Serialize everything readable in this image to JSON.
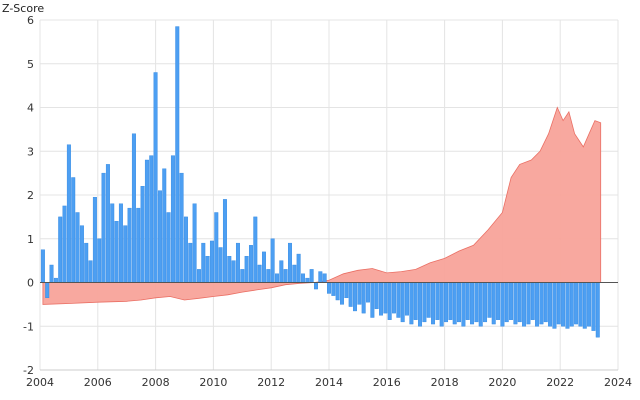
{
  "chart_data": {
    "type": "area",
    "ylabel": "Z-Score",
    "xlabel": "",
    "xlim": [
      2004,
      2024
    ],
    "ylim": [
      -2,
      6
    ],
    "grid": true,
    "x_ticks": [
      "2004",
      "2006",
      "2008",
      "2010",
      "2012",
      "2014",
      "2016",
      "2018",
      "2020",
      "2022",
      "2024"
    ],
    "y_ticks": [
      "-2",
      "-1",
      "0",
      "1",
      "2",
      "3",
      "4",
      "5",
      "6"
    ],
    "colors": {
      "area": "#f8a39a",
      "area_line": "#ea6f64",
      "bars": "#4d9ff2",
      "bars_line": "#2f86e0",
      "grid": "#e4e4e4",
      "zero": "#555555"
    },
    "series": [
      {
        "type": "area",
        "points": [
          [
            2004.1,
            -0.5
          ],
          [
            2005.0,
            -0.48
          ],
          [
            2006.0,
            -0.45
          ],
          [
            2007.0,
            -0.43
          ],
          [
            2007.5,
            -0.4
          ],
          [
            2008.0,
            -0.35
          ],
          [
            2008.5,
            -0.32
          ],
          [
            2009.0,
            -0.4
          ],
          [
            2009.5,
            -0.36
          ],
          [
            2010.0,
            -0.32
          ],
          [
            2010.5,
            -0.28
          ],
          [
            2011.0,
            -0.22
          ],
          [
            2011.5,
            -0.17
          ],
          [
            2012.0,
            -0.12
          ],
          [
            2012.5,
            -0.05
          ],
          [
            2013.0,
            -0.02
          ],
          [
            2013.5,
            0.0
          ],
          [
            2014.0,
            0.05
          ],
          [
            2014.5,
            0.2
          ],
          [
            2015.0,
            0.28
          ],
          [
            2015.5,
            0.32
          ],
          [
            2016.0,
            0.22
          ],
          [
            2016.5,
            0.25
          ],
          [
            2017.0,
            0.3
          ],
          [
            2017.5,
            0.45
          ],
          [
            2018.0,
            0.55
          ],
          [
            2018.5,
            0.72
          ],
          [
            2019.0,
            0.85
          ],
          [
            2019.5,
            1.2
          ],
          [
            2020.0,
            1.6
          ],
          [
            2020.3,
            2.4
          ],
          [
            2020.6,
            2.7
          ],
          [
            2021.0,
            2.8
          ],
          [
            2021.3,
            3.0
          ],
          [
            2021.6,
            3.4
          ],
          [
            2021.9,
            4.0
          ],
          [
            2022.1,
            3.7
          ],
          [
            2022.3,
            3.9
          ],
          [
            2022.5,
            3.4
          ],
          [
            2022.8,
            3.1
          ],
          [
            2023.0,
            3.4
          ],
          [
            2023.2,
            3.7
          ],
          [
            2023.4,
            3.65
          ]
        ]
      },
      {
        "type": "bar",
        "x": [
          2004.1,
          2004.25,
          2004.4,
          2004.55,
          2004.7,
          2004.85,
          2005.0,
          2005.15,
          2005.3,
          2005.45,
          2005.6,
          2005.75,
          2005.9,
          2006.05,
          2006.2,
          2006.35,
          2006.5,
          2006.65,
          2006.8,
          2006.95,
          2007.1,
          2007.25,
          2007.4,
          2007.55,
          2007.7,
          2007.85,
          2008.0,
          2008.15,
          2008.3,
          2008.45,
          2008.6,
          2008.75,
          2008.9,
          2009.05,
          2009.2,
          2009.35,
          2009.5,
          2009.65,
          2009.8,
          2009.95,
          2010.1,
          2010.25,
          2010.4,
          2010.55,
          2010.7,
          2010.85,
          2011.0,
          2011.15,
          2011.3,
          2011.45,
          2011.6,
          2011.75,
          2011.9,
          2012.05,
          2012.2,
          2012.35,
          2012.5,
          2012.65,
          2012.8,
          2012.95,
          2013.1,
          2013.25,
          2013.4,
          2013.55,
          2013.7,
          2013.85,
          2014.0,
          2014.15,
          2014.3,
          2014.45,
          2014.6,
          2014.75,
          2014.9,
          2015.05,
          2015.2,
          2015.35,
          2015.5,
          2015.65,
          2015.8,
          2015.95,
          2016.1,
          2016.25,
          2016.4,
          2016.55,
          2016.7,
          2016.85,
          2017.0,
          2017.15,
          2017.3,
          2017.45,
          2017.6,
          2017.75,
          2017.9,
          2018.05,
          2018.2,
          2018.35,
          2018.5,
          2018.65,
          2018.8,
          2018.95,
          2019.1,
          2019.25,
          2019.4,
          2019.55,
          2019.7,
          2019.85,
          2020.0,
          2020.15,
          2020.3,
          2020.45,
          2020.6,
          2020.75,
          2020.9,
          2021.05,
          2021.2,
          2021.35,
          2021.5,
          2021.65,
          2021.8,
          2021.95,
          2022.1,
          2022.25,
          2022.4,
          2022.55,
          2022.7,
          2022.85,
          2023.0,
          2023.15,
          2023.3
        ],
        "values": [
          0.75,
          -0.35,
          0.4,
          0.1,
          1.5,
          1.75,
          3.15,
          2.4,
          1.6,
          1.3,
          0.9,
          0.5,
          1.95,
          1.0,
          2.5,
          2.7,
          1.8,
          1.4,
          1.8,
          1.3,
          1.7,
          3.4,
          1.7,
          2.2,
          2.8,
          2.9,
          4.8,
          2.1,
          2.6,
          1.6,
          2.9,
          5.85,
          2.5,
          1.5,
          0.9,
          1.8,
          0.3,
          0.9,
          0.6,
          0.95,
          1.6,
          0.8,
          1.9,
          0.6,
          0.5,
          0.9,
          0.3,
          0.6,
          0.85,
          1.5,
          0.4,
          0.7,
          0.3,
          1.0,
          0.2,
          0.5,
          0.3,
          0.9,
          0.4,
          0.65,
          0.2,
          0.1,
          0.3,
          -0.15,
          0.25,
          0.2,
          -0.25,
          -0.3,
          -0.4,
          -0.5,
          -0.35,
          -0.55,
          -0.65,
          -0.5,
          -0.7,
          -0.45,
          -0.8,
          -0.6,
          -0.75,
          -0.7,
          -0.85,
          -0.7,
          -0.8,
          -0.9,
          -0.75,
          -0.95,
          -0.85,
          -1.0,
          -0.9,
          -0.8,
          -0.95,
          -0.85,
          -1.0,
          -0.9,
          -0.85,
          -0.95,
          -0.9,
          -1.0,
          -0.85,
          -0.95,
          -0.9,
          -1.0,
          -0.9,
          -0.8,
          -0.95,
          -0.85,
          -1.0,
          -0.9,
          -0.85,
          -0.95,
          -0.9,
          -1.0,
          -0.95,
          -0.85,
          -1.0,
          -0.95,
          -0.9,
          -1.0,
          -1.05,
          -0.95,
          -1.0,
          -1.05,
          -1.0,
          -0.95,
          -1.0,
          -1.05,
          -1.0,
          -1.1,
          -1.25
        ]
      }
    ]
  }
}
